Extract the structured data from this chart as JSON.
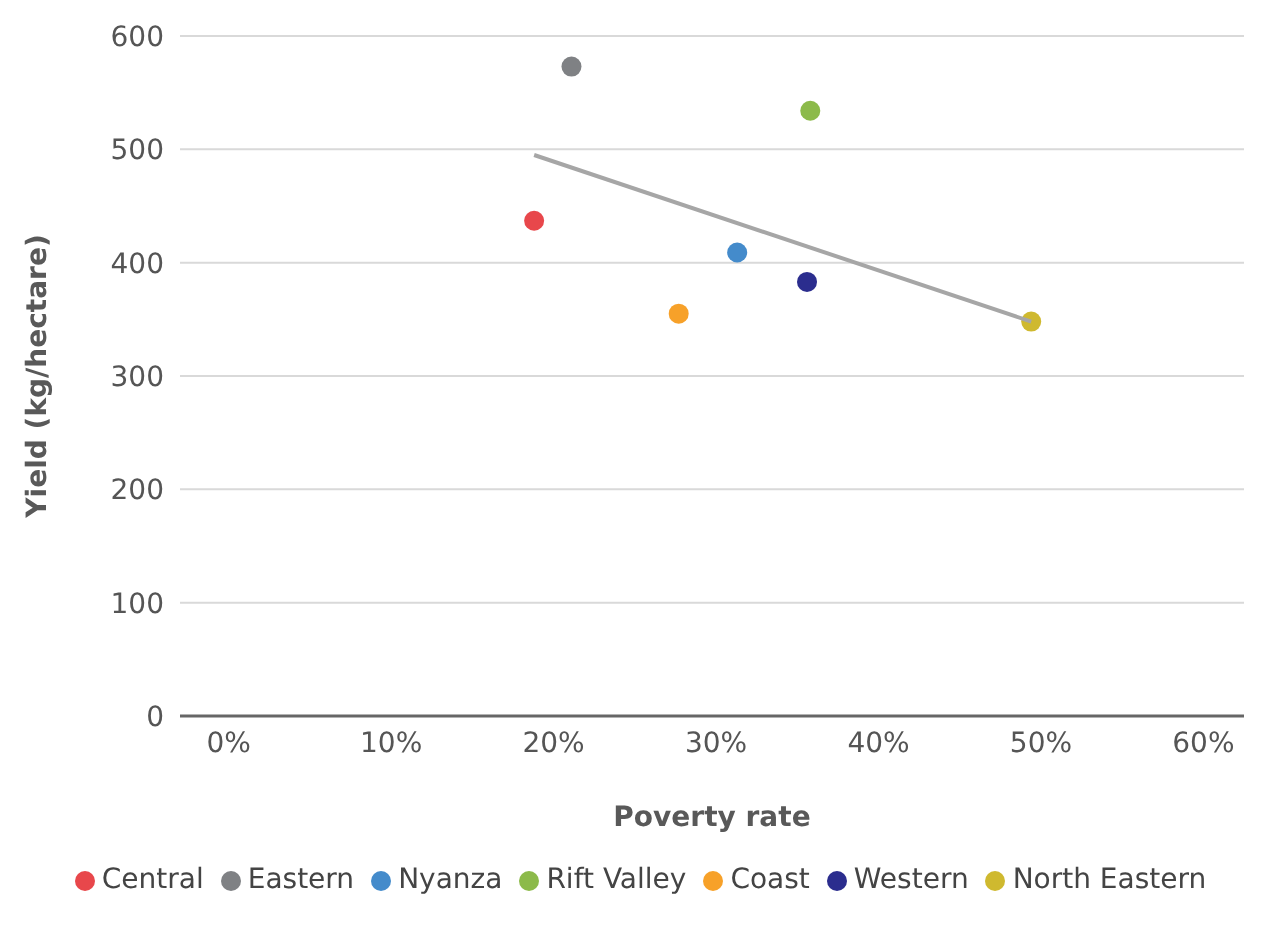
{
  "chart_data": {
    "type": "scatter",
    "xlabel": "Poverty rate",
    "ylabel": "Yield (kg/hectare)",
    "xlim": [
      -3,
      62.5
    ],
    "ylim": [
      0,
      600
    ],
    "xticks": [
      {
        "value": 0,
        "label": "0%"
      },
      {
        "value": 10,
        "label": "10%"
      },
      {
        "value": 20,
        "label": "20%"
      },
      {
        "value": 30,
        "label": "30%"
      },
      {
        "value": 40,
        "label": "40%"
      },
      {
        "value": 50,
        "label": "50%"
      },
      {
        "value": 60,
        "label": "60%"
      }
    ],
    "yticks": [
      0,
      100,
      200,
      300,
      400,
      500,
      600
    ],
    "grid": "y",
    "legend": "bottom",
    "marker": "circle",
    "series": [
      {
        "name": "Central",
        "color": "#e8474b",
        "x": [
          18.8
        ],
        "values": [
          437
        ]
      },
      {
        "name": "Eastern",
        "color": "#7f8184",
        "x": [
          21.1
        ],
        "values": [
          573
        ]
      },
      {
        "name": "Nyanza",
        "color": "#448bcb",
        "x": [
          31.3
        ],
        "values": [
          409
        ]
      },
      {
        "name": "Rift Valley",
        "color": "#8cba4a",
        "x": [
          35.8
        ],
        "values": [
          534
        ]
      },
      {
        "name": "Coast",
        "color": "#f7a129",
        "x": [
          27.7
        ],
        "values": [
          355
        ]
      },
      {
        "name": "Western",
        "color": "#2b2d8e",
        "x": [
          35.6
        ],
        "values": [
          383
        ]
      },
      {
        "name": "North Eastern",
        "color": "#cfb92f",
        "x": [
          49.4
        ],
        "values": [
          348
        ]
      },
      {
        "type": "line",
        "color": "#a6a6a6",
        "x": [
          18.8,
          49.4
        ],
        "values": [
          495,
          348
        ],
        "marker": "none"
      }
    ]
  }
}
